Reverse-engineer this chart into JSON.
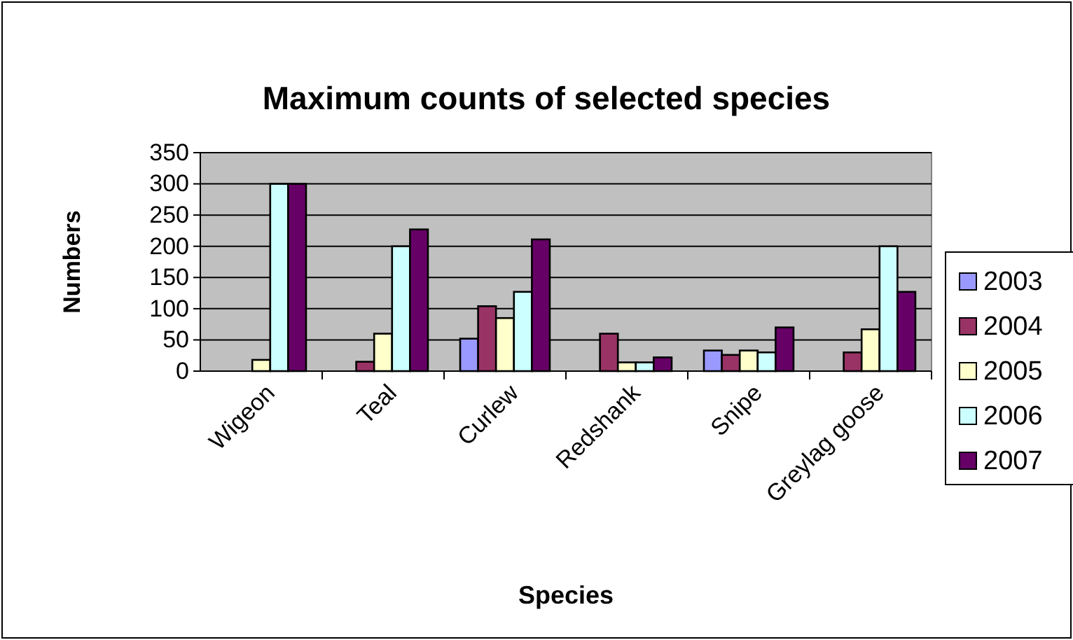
{
  "chart_data": {
    "type": "bar",
    "title": "Maximum counts of selected species",
    "xlabel": "Species",
    "ylabel": "Numbers",
    "categories": [
      "Wigeon",
      "Teal",
      "Curlew",
      "Redshank",
      "Snipe",
      "Greylag goose"
    ],
    "series": [
      {
        "name": "2003",
        "color": "#9999ff",
        "values": [
          null,
          null,
          52,
          null,
          33,
          null
        ]
      },
      {
        "name": "2004",
        "color": "#993366",
        "values": [
          null,
          15,
          104,
          60,
          26,
          30
        ]
      },
      {
        "name": "2005",
        "color": "#ffffcc",
        "values": [
          18,
          60,
          85,
          14,
          33,
          67
        ]
      },
      {
        "name": "2006",
        "color": "#ccffff",
        "values": [
          300,
          200,
          127,
          14,
          30,
          200
        ]
      },
      {
        "name": "2007",
        "color": "#660066",
        "values": [
          300,
          227,
          211,
          22,
          70,
          127
        ]
      }
    ],
    "ylim": [
      0,
      350
    ],
    "yticks": [
      0,
      50,
      100,
      150,
      200,
      250,
      300,
      350
    ],
    "grid": "y",
    "legend": "right"
  }
}
